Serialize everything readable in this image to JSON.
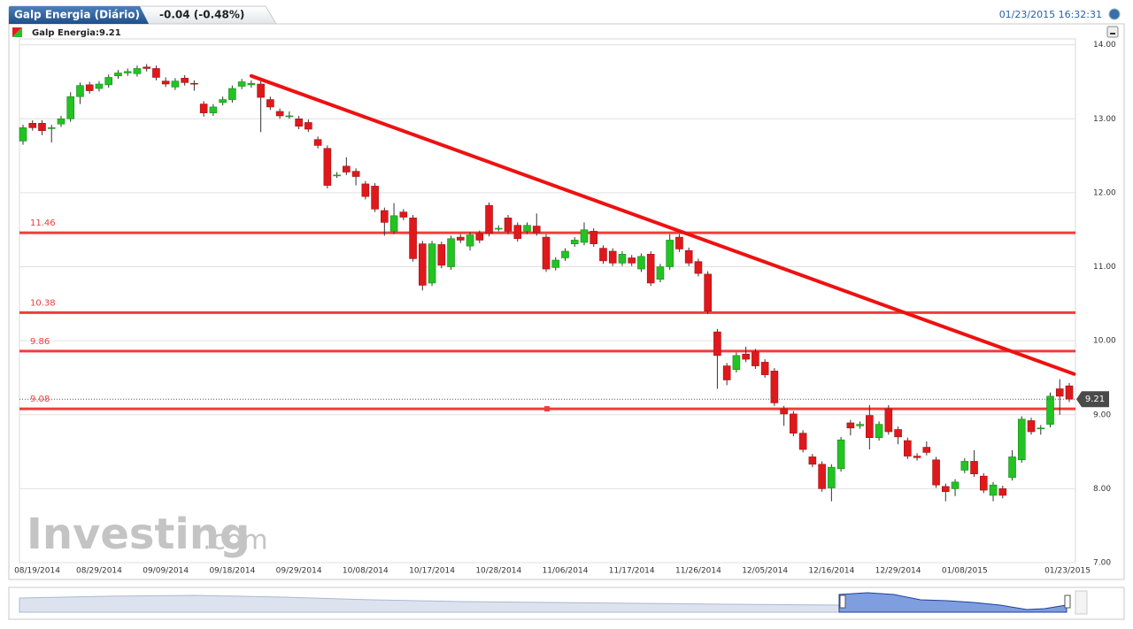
{
  "chart_data": {
    "type": "candlestick",
    "title": "Galp Energia (Diário)",
    "change": "-0.04 (-0.48%)",
    "timestamp": "01/23/2015 16:32:31",
    "legend_label": "Galp Energia:9.21",
    "watermark": [
      "Investing",
      ".com"
    ],
    "up_color": "#22c322",
    "down_color": "#e0181c",
    "level_color": "#f03c3c",
    "trend_color": "#ee1111",
    "categories": [
      "08/19/2014",
      null,
      null,
      null,
      null,
      null,
      null,
      null,
      "08/29/2014",
      null,
      null,
      null,
      null,
      null,
      null,
      "09/09/2014",
      null,
      null,
      null,
      null,
      null,
      null,
      "09/18/2014",
      null,
      null,
      null,
      null,
      null,
      null,
      "09/29/2014",
      null,
      null,
      null,
      null,
      null,
      null,
      "10/08/2014",
      null,
      null,
      null,
      null,
      null,
      null,
      "10/17/2014",
      null,
      null,
      null,
      null,
      null,
      null,
      "10/28/2014",
      null,
      null,
      null,
      null,
      null,
      null,
      "11/06/2014",
      null,
      null,
      null,
      null,
      null,
      null,
      "11/17/2014",
      null,
      null,
      null,
      null,
      null,
      null,
      "11/26/2014",
      null,
      null,
      null,
      null,
      null,
      null,
      "12/05/2014",
      null,
      null,
      null,
      null,
      null,
      null,
      "12/16/2014",
      null,
      null,
      null,
      null,
      null,
      null,
      "12/29/2014",
      null,
      null,
      null,
      null,
      null,
      null,
      "01/08/2015",
      null,
      null,
      null,
      null,
      null,
      null,
      null,
      null,
      null,
      null,
      "01/23/2015"
    ],
    "open": [
      12.7,
      12.94,
      12.94,
      12.88,
      12.93,
      13.0,
      13.3,
      13.46,
      13.41,
      13.46,
      13.58,
      13.62,
      13.61,
      13.7,
      13.68,
      13.51,
      13.43,
      13.55,
      13.48,
      13.2,
      13.08,
      13.22,
      13.26,
      13.44,
      13.46,
      13.47,
      13.26,
      13.1,
      13.04,
      13.0,
      12.95,
      12.72,
      12.6,
      12.24,
      12.36,
      12.29,
      12.12,
      12.09,
      11.76,
      11.48,
      11.74,
      11.66,
      11.31,
      10.78,
      11.3,
      11.0,
      11.4,
      11.28,
      11.45,
      11.83,
      11.52,
      11.66,
      11.56,
      11.48,
      11.55,
      11.4,
      10.99,
      11.12,
      11.31,
      11.33,
      11.48,
      11.25,
      11.21,
      11.05,
      11.12,
      10.97,
      11.17,
      10.83,
      11.0,
      11.4,
      11.22,
      11.07,
      10.9,
      10.12,
      9.66,
      9.61,
      9.82,
      9.85,
      9.71,
      9.59,
      9.08,
      9.01,
      8.75,
      8.43,
      8.33,
      8.01,
      8.27,
      8.89,
      8.85,
      8.99,
      8.69,
      9.08,
      8.8,
      8.65,
      8.44,
      8.56,
      8.39,
      8.03,
      8.0,
      8.25,
      8.37,
      8.17,
      7.91,
      8.0,
      8.15,
      8.39,
      8.92,
      8.82,
      8.87,
      9.35,
      9.39
    ],
    "high": [
      12.92,
      12.98,
      12.98,
      12.92,
      13.04,
      13.36,
      13.49,
      13.5,
      13.51,
      13.6,
      13.66,
      13.68,
      13.72,
      13.74,
      13.72,
      13.56,
      13.55,
      13.59,
      13.52,
      13.24,
      13.2,
      13.3,
      13.45,
      13.54,
      13.52,
      13.52,
      13.3,
      13.14,
      13.1,
      13.04,
      12.99,
      12.76,
      12.64,
      12.28,
      12.48,
      12.33,
      12.16,
      12.13,
      11.8,
      11.86,
      11.78,
      11.7,
      11.35,
      11.35,
      11.34,
      11.42,
      11.44,
      11.47,
      11.49,
      11.87,
      11.56,
      11.7,
      11.6,
      11.6,
      11.72,
      11.44,
      11.13,
      11.25,
      11.4,
      11.6,
      11.52,
      11.29,
      11.25,
      11.21,
      11.16,
      11.18,
      11.21,
      11.04,
      11.44,
      11.44,
      11.26,
      11.11,
      10.94,
      10.16,
      9.7,
      9.84,
      9.92,
      9.89,
      9.75,
      9.63,
      9.12,
      9.05,
      8.79,
      8.47,
      8.37,
      8.33,
      8.7,
      8.93,
      8.91,
      9.13,
      8.91,
      9.13,
      8.84,
      8.69,
      8.48,
      8.64,
      8.43,
      8.07,
      8.13,
      8.41,
      8.52,
      8.21,
      8.09,
      8.04,
      8.52,
      8.98,
      8.96,
      8.86,
      9.3,
      9.48,
      9.43
    ],
    "low": [
      12.65,
      12.84,
      12.78,
      12.68,
      12.89,
      12.96,
      13.2,
      13.34,
      13.37,
      13.42,
      13.54,
      13.58,
      13.57,
      13.64,
      13.52,
      13.43,
      13.39,
      13.45,
      13.38,
      13.03,
      13.04,
      13.18,
      13.22,
      13.4,
      13.42,
      12.82,
      13.12,
      13.0,
      13.0,
      12.86,
      12.82,
      12.6,
      12.06,
      12.2,
      12.24,
      12.1,
      11.91,
      11.74,
      11.42,
      11.44,
      11.63,
      11.07,
      10.68,
      10.74,
      10.98,
      10.96,
      11.32,
      11.22,
      11.32,
      11.41,
      11.48,
      11.44,
      11.34,
      11.44,
      11.42,
      10.93,
      10.95,
      11.08,
      11.27,
      11.29,
      11.27,
      11.04,
      11.01,
      11.01,
      11.01,
      10.93,
      10.74,
      10.79,
      10.96,
      11.2,
      11.01,
      10.87,
      10.36,
      9.35,
      9.4,
      9.57,
      9.71,
      9.62,
      9.5,
      9.12,
      8.85,
      8.71,
      8.49,
      8.29,
      7.96,
      7.83,
      8.23,
      8.72,
      8.81,
      8.53,
      8.65,
      8.73,
      8.6,
      8.4,
      8.38,
      8.45,
      8.01,
      7.83,
      7.9,
      8.21,
      8.16,
      7.94,
      7.83,
      7.87,
      8.11,
      8.35,
      8.73,
      8.73,
      8.83,
      9.0,
      9.17
    ],
    "close": [
      12.88,
      12.88,
      12.84,
      12.88,
      13.0,
      13.3,
      13.45,
      13.38,
      13.47,
      13.56,
      13.62,
      13.64,
      13.68,
      13.68,
      13.56,
      13.47,
      13.51,
      13.49,
      13.47,
      13.08,
      13.16,
      13.26,
      13.41,
      13.5,
      13.48,
      13.29,
      13.16,
      13.04,
      13.04,
      12.9,
      12.86,
      12.64,
      12.1,
      12.24,
      12.28,
      12.22,
      11.95,
      11.78,
      11.6,
      11.69,
      11.67,
      11.11,
      10.75,
      11.31,
      11.02,
      11.38,
      11.36,
      11.43,
      11.36,
      11.45,
      11.52,
      11.48,
      11.38,
      11.56,
      11.46,
      10.97,
      11.09,
      11.21,
      11.36,
      11.5,
      11.31,
      11.08,
      11.05,
      11.17,
      11.05,
      11.14,
      10.78,
      11.0,
      11.36,
      11.24,
      11.05,
      10.91,
      10.4,
      9.8,
      9.47,
      9.8,
      9.75,
      9.66,
      9.54,
      9.16,
      9.01,
      8.75,
      8.53,
      8.33,
      8.0,
      8.29,
      8.66,
      8.82,
      8.87,
      8.69,
      8.87,
      8.77,
      8.7,
      8.44,
      8.42,
      8.49,
      8.05,
      7.96,
      8.09,
      8.37,
      8.2,
      7.98,
      8.05,
      7.91,
      8.43,
      8.94,
      8.77,
      8.82,
      9.25,
      9.25,
      9.21
    ],
    "levels": [
      {
        "value": 11.46,
        "label": "11.46"
      },
      {
        "value": 10.38,
        "label": "10.38"
      },
      {
        "value": 9.86,
        "label": "9.86"
      },
      {
        "value": 9.08,
        "label": "9.08"
      }
    ],
    "trendline": {
      "x": [
        24,
        110.5
      ],
      "y": [
        13.58,
        9.55
      ]
    },
    "last_price": {
      "value": 9.21,
      "label": "9.21"
    },
    "ylim": [
      7,
      14.08
    ],
    "yticks": [
      {
        "value": 14,
        "label": "14.00"
      },
      {
        "value": 13,
        "label": "13.00"
      },
      {
        "value": 12,
        "label": "12.00"
      },
      {
        "value": 11,
        "label": "11.00"
      },
      {
        "value": 10,
        "label": "10.00"
      },
      {
        "value": 9,
        "label": "9.00"
      },
      {
        "value": 8,
        "label": "8.00"
      },
      {
        "value": 7,
        "label": "7.00"
      }
    ],
    "grid": true
  }
}
